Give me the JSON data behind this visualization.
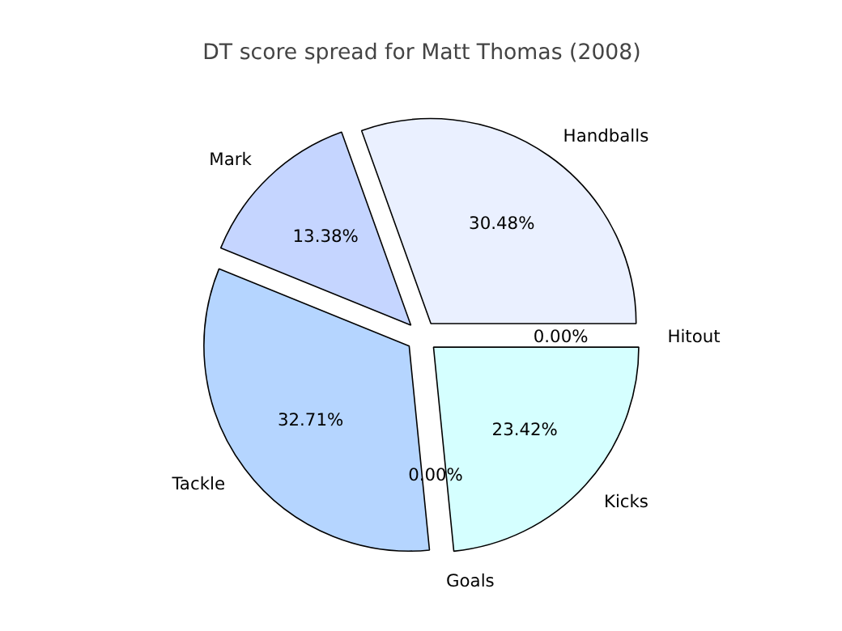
{
  "chart_data": {
    "type": "pie",
    "title": "DT score spread for Matt Thomas (2008)",
    "categories": [
      "Hitout",
      "Handballs",
      "Mark",
      "Tackle",
      "Goals",
      "Kicks"
    ],
    "values": [
      0.0,
      30.48,
      13.38,
      32.71,
      0.0,
      23.42
    ],
    "value_labels": [
      "0.00%",
      "30.48%",
      "13.38%",
      "32.71%",
      "0.00%",
      "23.42%"
    ],
    "colors": [
      "#f0f0ff",
      "#eaf0ff",
      "#c5d5ff",
      "#b5d5ff",
      "#e0e0ff",
      "#d5ffff"
    ]
  }
}
